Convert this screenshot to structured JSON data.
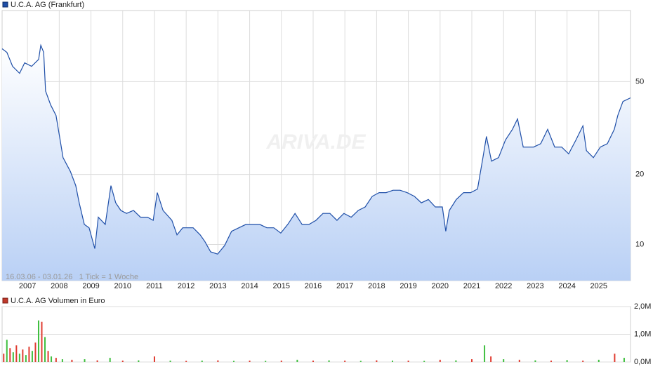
{
  "chart_data": [
    {
      "type": "line",
      "legend": "U.C.A. AG (Frankfurt)",
      "annotation": "16.03.06 - 03.01.26   1 Tick = 1 Woche",
      "watermark": "ARIVA.DE",
      "color": "#1f4fa8",
      "log_scale": true,
      "grid": true,
      "xlim": [
        2006.2,
        2026.0
      ],
      "xticks": [
        2007,
        2008,
        2009,
        2010,
        2011,
        2012,
        2013,
        2014,
        2015,
        2016,
        2017,
        2018,
        2019,
        2020,
        2021,
        2022,
        2023,
        2024,
        2025
      ],
      "ylim": [
        7,
        101
      ],
      "yticks": [
        10,
        20,
        50
      ],
      "x": [
        2006.2,
        2006.35,
        2006.53,
        2006.75,
        2006.91,
        2007.13,
        2007.35,
        2007.42,
        2007.51,
        2007.57,
        2007.73,
        2007.9,
        2008.01,
        2008.12,
        2008.35,
        2008.52,
        2008.63,
        2008.79,
        2008.94,
        2009.12,
        2009.23,
        2009.45,
        2009.63,
        2009.78,
        2009.94,
        2010.12,
        2010.34,
        2010.56,
        2010.78,
        2010.96,
        2011.09,
        2011.27,
        2011.55,
        2011.71,
        2011.89,
        2012.22,
        2012.44,
        2012.59,
        2012.77,
        2012.99,
        2013.21,
        2013.43,
        2013.66,
        2013.88,
        2014.1,
        2014.32,
        2014.54,
        2014.76,
        2014.98,
        2015.2,
        2015.43,
        2015.65,
        2015.87,
        2016.09,
        2016.31,
        2016.53,
        2016.75,
        2016.97,
        2017.2,
        2017.42,
        2017.64,
        2017.86,
        2018.08,
        2018.3,
        2018.52,
        2018.74,
        2018.96,
        2019.19,
        2019.41,
        2019.63,
        2019.85,
        2020.07,
        2020.18,
        2020.29,
        2020.51,
        2020.74,
        2020.96,
        2021.18,
        2021.35,
        2021.46,
        2021.62,
        2021.84,
        2022.06,
        2022.28,
        2022.44,
        2022.62,
        2022.95,
        2023.17,
        2023.39,
        2023.61,
        2023.83,
        2024.05,
        2024.28,
        2024.5,
        2024.61,
        2024.83,
        2025.05,
        2025.27,
        2025.49,
        2025.6,
        2025.76,
        2026.0
      ],
      "values": [
        69.2,
        66.8,
        58.2,
        54.3,
        60.2,
        58.2,
        62.3,
        71.6,
        66.8,
        45.6,
        39.7,
        35.8,
        29.1,
        23.6,
        20.6,
        17.9,
        15.1,
        12.2,
        11.8,
        9.6,
        13.1,
        12.2,
        17.9,
        15.1,
        14.0,
        13.6,
        14.0,
        13.1,
        13.1,
        12.7,
        16.7,
        14.0,
        12.7,
        11.0,
        11.8,
        11.8,
        11.0,
        10.3,
        9.3,
        9.1,
        9.9,
        11.4,
        11.8,
        12.2,
        12.2,
        12.2,
        11.8,
        11.8,
        11.2,
        12.2,
        13.6,
        12.2,
        12.2,
        12.7,
        13.6,
        13.6,
        12.7,
        13.6,
        13.1,
        14.0,
        14.5,
        16.1,
        16.7,
        16.7,
        17.1,
        17.1,
        16.7,
        16.1,
        15.1,
        15.6,
        14.5,
        14.5,
        11.4,
        14.0,
        15.6,
        16.7,
        16.7,
        17.3,
        23.6,
        29.1,
        22.8,
        23.6,
        28.1,
        31.2,
        34.6,
        26.2,
        26.2,
        27.1,
        31.2,
        26.2,
        26.2,
        24.5,
        28.1,
        32.3,
        25.3,
        23.6,
        26.2,
        27.1,
        31.2,
        35.8,
        41.1,
        42.6
      ]
    },
    {
      "type": "bar",
      "legend": "U.C.A. AG Volumen in Euro",
      "color": "#c0392b",
      "bar_colors": [
        "#e03c31",
        "#3fbf3f"
      ],
      "grid": true,
      "xlim": [
        2006.2,
        2026.0
      ],
      "ylim": [
        0,
        2
      ],
      "yticks": [
        {
          "value": 0,
          "label": "0,0M"
        },
        {
          "value": 1,
          "label": "1,0M"
        },
        {
          "value": 2,
          "label": "2,0M"
        }
      ],
      "x": [
        2006.25,
        2006.35,
        2006.45,
        2006.55,
        2006.65,
        2006.75,
        2006.85,
        2006.95,
        2007.05,
        2007.15,
        2007.25,
        2007.35,
        2007.45,
        2007.55,
        2007.65,
        2007.75,
        2007.9,
        2008.1,
        2008.4,
        2008.8,
        2009.2,
        2009.6,
        2010.0,
        2010.5,
        2011.0,
        2011.5,
        2012.0,
        2012.5,
        2013.0,
        2013.5,
        2014.0,
        2014.5,
        2015.0,
        2015.5,
        2016.0,
        2016.5,
        2017.0,
        2017.5,
        2018.0,
        2018.5,
        2019.0,
        2019.5,
        2020.0,
        2020.5,
        2021.0,
        2021.4,
        2021.6,
        2022.0,
        2022.5,
        2023.0,
        2023.5,
        2024.0,
        2024.5,
        2025.0,
        2025.5,
        2025.8
      ],
      "values": [
        0.3,
        0.8,
        0.5,
        0.35,
        0.6,
        0.3,
        0.45,
        0.25,
        0.55,
        0.4,
        0.7,
        1.5,
        1.45,
        0.9,
        0.4,
        0.2,
        0.15,
        0.1,
        0.08,
        0.1,
        0.06,
        0.15,
        0.05,
        0.06,
        0.2,
        0.05,
        0.04,
        0.05,
        0.06,
        0.04,
        0.05,
        0.04,
        0.05,
        0.08,
        0.05,
        0.06,
        0.05,
        0.04,
        0.06,
        0.05,
        0.05,
        0.04,
        0.08,
        0.06,
        0.1,
        0.6,
        0.2,
        0.1,
        0.08,
        0.06,
        0.05,
        0.07,
        0.05,
        0.08,
        0.3,
        0.15
      ]
    }
  ]
}
